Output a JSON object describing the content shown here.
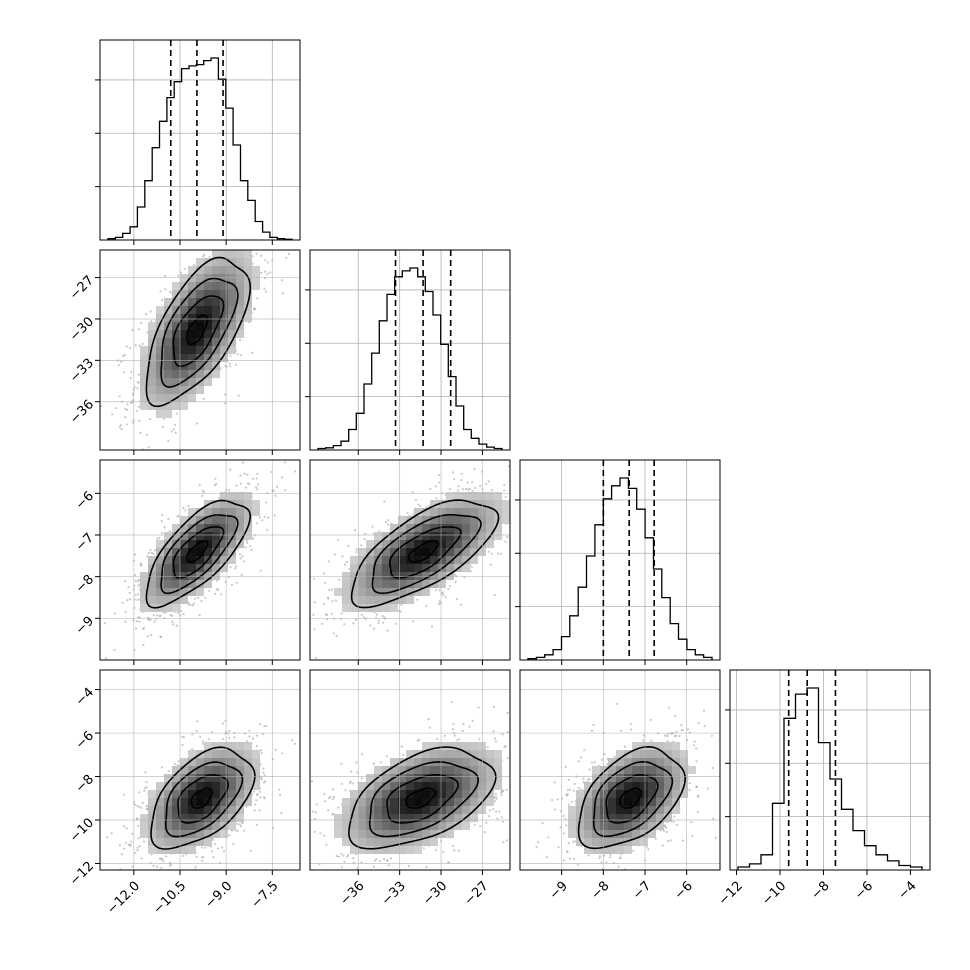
{
  "chart_data": {
    "type": "corner",
    "grid": true,
    "parameters": [
      {
        "ticks": [
          -12.0,
          -10.5,
          -9.0,
          -7.5
        ],
        "tick_labels": [
          "−12.0",
          "−10.5",
          "−9.0",
          "−7.5"
        ],
        "range": [
          -13.1,
          -6.6
        ],
        "quantiles": [
          -10.8,
          -9.95,
          -9.1
        ],
        "hist": [
          1,
          2,
          5,
          10,
          25,
          45,
          70,
          90,
          108,
          120,
          130,
          132,
          133,
          136,
          138,
          122,
          100,
          72,
          45,
          30,
          14,
          6,
          2,
          1,
          0.5
        ]
      },
      {
        "ticks": [
          -36,
          -33,
          -30,
          -27
        ],
        "tick_labels": [
          "−36",
          "−33",
          "−30",
          "−27"
        ],
        "range": [
          -39.5,
          -25.0
        ],
        "quantiles": [
          -33.3,
          -31.3,
          -29.3
        ],
        "hist": [
          1,
          1.5,
          3,
          6,
          14,
          25,
          45,
          66,
          88,
          106,
          118,
          122,
          124,
          118,
          108,
          92,
          72,
          50,
          30,
          14,
          8,
          4,
          2,
          1
        ]
      },
      {
        "ticks": [
          -9,
          -8,
          -7,
          -6
        ],
        "tick_labels": [
          "−9",
          "−8",
          "−7",
          "−6"
        ],
        "range": [
          -10.0,
          -5.2
        ],
        "quantiles": [
          -8.0,
          -7.38,
          -6.78
        ],
        "hist": [
          1,
          2,
          4,
          8,
          18,
          34,
          56,
          80,
          104,
          124,
          134,
          140,
          132,
          116,
          94,
          70,
          48,
          28,
          16,
          8,
          4,
          2
        ]
      },
      {
        "ticks": [
          -12,
          -10,
          -8,
          -6,
          -4
        ],
        "tick_labels": [
          "−12",
          "−10",
          "−8",
          "−6",
          "−4"
        ],
        "range": [
          -12.3,
          -3.1
        ],
        "quantiles": [
          -9.6,
          -8.75,
          -7.45
        ],
        "hist": [
          1,
          2,
          5,
          22,
          50,
          58,
          60,
          42,
          30,
          20,
          13,
          8,
          5,
          3,
          1.5,
          1
        ]
      }
    ],
    "pairs": [
      {
        "row": 1,
        "col": 0,
        "peak": [
          -9.95,
          -30.8
        ],
        "size": [
          0.95,
          3.0
        ],
        "corr": 0.62,
        "levels": [
          1.0,
          0.62,
          0.33,
          0.1
        ]
      },
      {
        "row": 2,
        "col": 0,
        "peak": [
          -9.95,
          -7.4
        ],
        "size": [
          0.95,
          0.72
        ],
        "corr": 0.7,
        "levels": [
          1.0,
          0.62,
          0.33,
          0.1
        ]
      },
      {
        "row": 2,
        "col": 1,
        "peak": [
          -31.3,
          -7.4
        ],
        "size": [
          3.0,
          0.72
        ],
        "corr": 0.68,
        "levels": [
          1.0,
          0.62,
          0.33,
          0.1
        ]
      },
      {
        "row": 3,
        "col": 0,
        "peak": [
          -9.8,
          -9.0
        ],
        "size": [
          0.95,
          1.3
        ],
        "corr": 0.5,
        "levels": [
          1.0,
          0.62,
          0.33,
          0.1
        ]
      },
      {
        "row": 3,
        "col": 1,
        "peak": [
          -31.5,
          -9.0
        ],
        "size": [
          3.0,
          1.3
        ],
        "corr": 0.48,
        "levels": [
          1.0,
          0.62,
          0.33,
          0.1
        ]
      },
      {
        "row": 3,
        "col": 2,
        "peak": [
          -7.35,
          -9.0
        ],
        "size": [
          0.72,
          1.3
        ],
        "corr": 0.45,
        "levels": [
          1.0,
          0.62,
          0.33,
          0.1
        ]
      }
    ]
  }
}
